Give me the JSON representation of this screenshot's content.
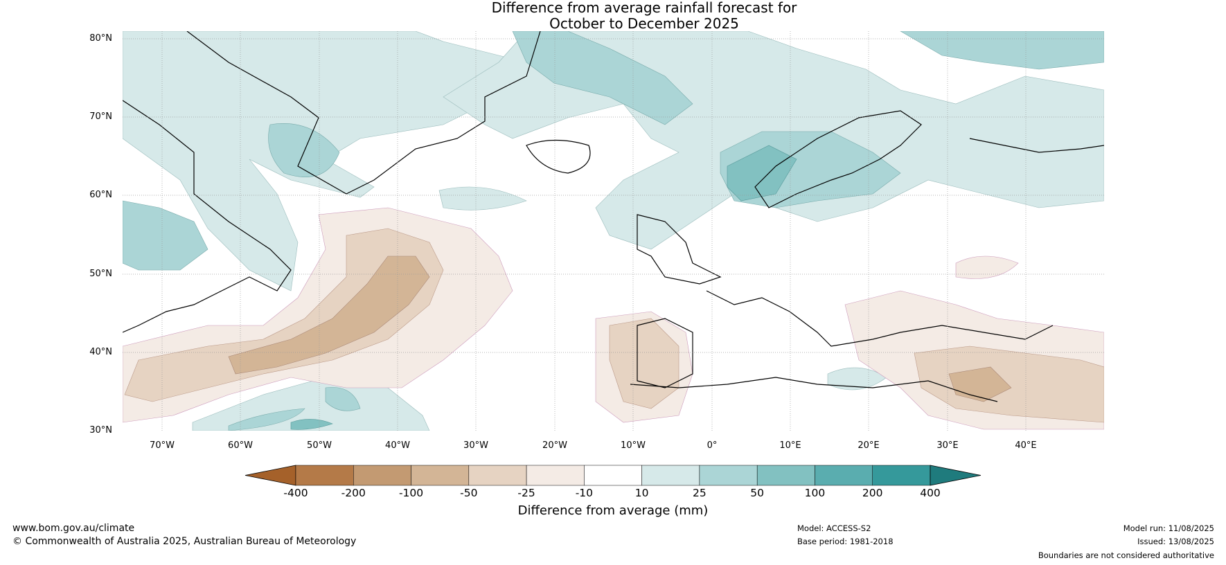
{
  "title_line1": "Difference from average rainfall forecast for",
  "title_line2": "October to December 2025",
  "latitude_labels": [
    "80°N",
    "70°N",
    "60°N",
    "50°N",
    "40°N",
    "30°N"
  ],
  "longitude_labels": [
    "70°W",
    "60°W",
    "50°W",
    "40°W",
    "30°W",
    "20°W",
    "10°W",
    "0°",
    "10°E",
    "20°E",
    "30°E",
    "40°E"
  ],
  "colorbar": {
    "ticks": [
      "-400",
      "-200",
      "-100",
      "-50",
      "-25",
      "-10",
      "10",
      "25",
      "50",
      "100",
      "200",
      "400"
    ],
    "colors": [
      "#a5612a",
      "#b47a48",
      "#c39a72",
      "#d3b596",
      "#e6d3c2",
      "#f4ebe5",
      "#ffffff",
      "#d6e9e9",
      "#abd5d6",
      "#82c1c1",
      "#5aadaf",
      "#35999b",
      "#1f7b7d"
    ],
    "label": "Difference from average (mm)"
  },
  "footer": {
    "website": "www.bom.gov.au/climate",
    "copyright": "© Commonwealth of Australia 2025, Australian Bureau of Meteorology",
    "model": "Model: ACCESS-S2",
    "base_period": "Base period: 1981-2018",
    "model_run": "Model run: 11/08/2025",
    "issued": "Issued: 13/08/2025",
    "disclaimer": "Boundaries are not considered authoritative"
  }
}
